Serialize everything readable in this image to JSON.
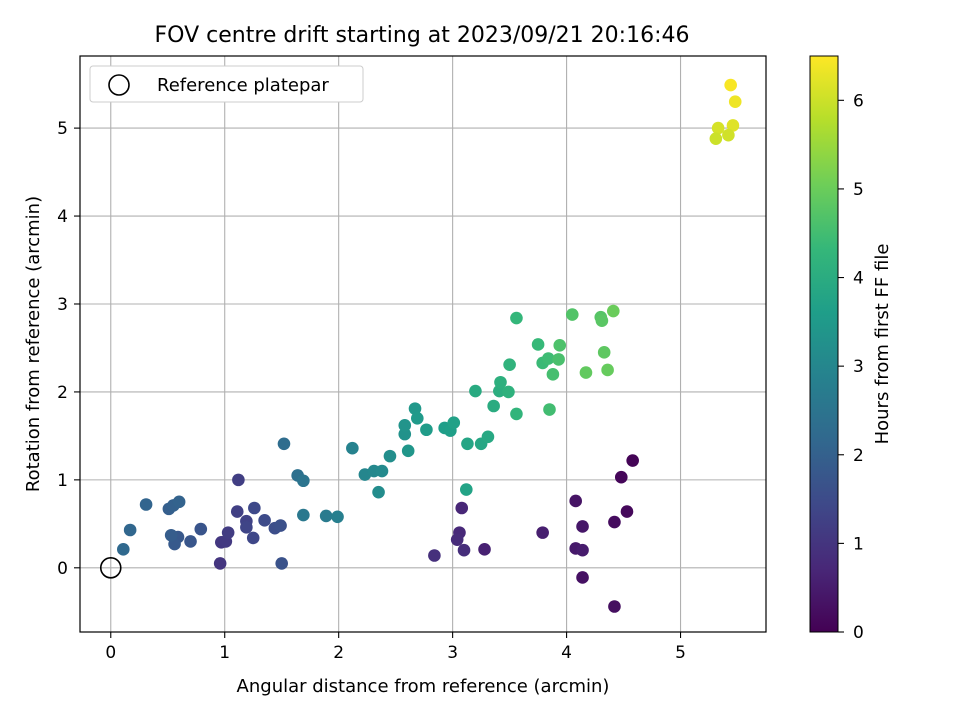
{
  "chart_data": {
    "type": "scatter",
    "title": "FOV centre drift starting at 2023/09/21 20:16:46",
    "xlabel": "Angular distance from reference (arcmin)",
    "ylabel": "Rotation from reference (arcmin)",
    "xlim": [
      -0.27,
      5.75
    ],
    "ylim": [
      -0.73,
      5.82
    ],
    "xticks": [
      0,
      1,
      2,
      3,
      4,
      5
    ],
    "yticks": [
      0,
      1,
      2,
      3,
      4,
      5
    ],
    "grid": true,
    "legend": {
      "placement": "top-left",
      "entries": [
        "Reference platepar"
      ]
    },
    "reference_point": {
      "x": 0.0,
      "y": 0.0,
      "name": "Reference platepar"
    },
    "colorbar": {
      "label": "Hours from first FF file",
      "range": [
        0,
        6.5
      ],
      "ticks": [
        0,
        1,
        2,
        3,
        4,
        5,
        6
      ],
      "colormap": "viridis"
    },
    "points": [
      {
        "x": 4.58,
        "y": 1.22,
        "c": 0.05
      },
      {
        "x": 4.48,
        "y": 1.03,
        "c": 0.1
      },
      {
        "x": 4.53,
        "y": 0.64,
        "c": 0.15
      },
      {
        "x": 4.42,
        "y": 0.52,
        "c": 0.2
      },
      {
        "x": 4.42,
        "y": -0.44,
        "c": 0.25
      },
      {
        "x": 4.14,
        "y": -0.11,
        "c": 0.3
      },
      {
        "x": 4.08,
        "y": 0.76,
        "c": 0.35
      },
      {
        "x": 4.14,
        "y": 0.47,
        "c": 0.4
      },
      {
        "x": 4.08,
        "y": 0.22,
        "c": 0.45
      },
      {
        "x": 4.14,
        "y": 0.2,
        "c": 0.5
      },
      {
        "x": 3.79,
        "y": 0.4,
        "c": 0.55
      },
      {
        "x": 3.28,
        "y": 0.21,
        "c": 0.6
      },
      {
        "x": 3.08,
        "y": 0.68,
        "c": 0.7
      },
      {
        "x": 3.06,
        "y": 0.4,
        "c": 0.75
      },
      {
        "x": 3.04,
        "y": 0.32,
        "c": 0.8
      },
      {
        "x": 3.1,
        "y": 0.2,
        "c": 0.85
      },
      {
        "x": 2.84,
        "y": 0.14,
        "c": 0.9
      },
      {
        "x": 0.96,
        "y": 0.05,
        "c": 1.0
      },
      {
        "x": 0.97,
        "y": 0.29,
        "c": 1.05
      },
      {
        "x": 1.01,
        "y": 0.3,
        "c": 1.1
      },
      {
        "x": 1.03,
        "y": 0.4,
        "c": 1.15
      },
      {
        "x": 1.12,
        "y": 1.0,
        "c": 1.2
      },
      {
        "x": 1.11,
        "y": 0.64,
        "c": 1.25
      },
      {
        "x": 1.19,
        "y": 0.53,
        "c": 1.3
      },
      {
        "x": 1.19,
        "y": 0.46,
        "c": 1.35
      },
      {
        "x": 1.25,
        "y": 0.34,
        "c": 1.4
      },
      {
        "x": 1.26,
        "y": 0.68,
        "c": 1.45
      },
      {
        "x": 1.35,
        "y": 0.54,
        "c": 1.5
      },
      {
        "x": 1.44,
        "y": 0.45,
        "c": 1.55
      },
      {
        "x": 1.49,
        "y": 0.48,
        "c": 1.6
      },
      {
        "x": 1.5,
        "y": 0.05,
        "c": 1.65
      },
      {
        "x": 0.79,
        "y": 0.44,
        "c": 1.7
      },
      {
        "x": 0.7,
        "y": 0.3,
        "c": 1.75
      },
      {
        "x": 0.59,
        "y": 0.35,
        "c": 1.8
      },
      {
        "x": 0.56,
        "y": 0.27,
        "c": 1.85
      },
      {
        "x": 0.53,
        "y": 0.37,
        "c": 1.9
      },
      {
        "x": 0.51,
        "y": 0.67,
        "c": 1.95
      },
      {
        "x": 0.55,
        "y": 0.71,
        "c": 2.0
      },
      {
        "x": 0.6,
        "y": 0.75,
        "c": 2.05
      },
      {
        "x": 0.31,
        "y": 0.72,
        "c": 2.1
      },
      {
        "x": 0.17,
        "y": 0.43,
        "c": 2.15
      },
      {
        "x": 0.11,
        "y": 0.21,
        "c": 2.2
      },
      {
        "x": 1.52,
        "y": 1.41,
        "c": 2.3
      },
      {
        "x": 1.64,
        "y": 1.05,
        "c": 2.4
      },
      {
        "x": 1.69,
        "y": 0.99,
        "c": 2.5
      },
      {
        "x": 1.69,
        "y": 0.6,
        "c": 2.6
      },
      {
        "x": 1.89,
        "y": 0.59,
        "c": 2.7
      },
      {
        "x": 1.99,
        "y": 0.58,
        "c": 2.8
      },
      {
        "x": 2.12,
        "y": 1.36,
        "c": 2.9
      },
      {
        "x": 2.23,
        "y": 1.06,
        "c": 3.0
      },
      {
        "x": 2.31,
        "y": 1.1,
        "c": 3.05
      },
      {
        "x": 2.38,
        "y": 1.1,
        "c": 3.1
      },
      {
        "x": 2.35,
        "y": 0.86,
        "c": 3.15
      },
      {
        "x": 2.45,
        "y": 1.27,
        "c": 3.2
      },
      {
        "x": 2.58,
        "y": 1.52,
        "c": 3.3
      },
      {
        "x": 2.58,
        "y": 1.62,
        "c": 3.35
      },
      {
        "x": 2.61,
        "y": 1.33,
        "c": 3.4
      },
      {
        "x": 2.67,
        "y": 1.81,
        "c": 3.45
      },
      {
        "x": 2.69,
        "y": 1.7,
        "c": 3.5
      },
      {
        "x": 2.77,
        "y": 1.57,
        "c": 3.55
      },
      {
        "x": 2.93,
        "y": 1.59,
        "c": 3.6
      },
      {
        "x": 2.98,
        "y": 1.56,
        "c": 3.65
      },
      {
        "x": 3.01,
        "y": 1.65,
        "c": 3.7
      },
      {
        "x": 3.12,
        "y": 0.89,
        "c": 3.75
      },
      {
        "x": 3.13,
        "y": 1.41,
        "c": 3.8
      },
      {
        "x": 3.25,
        "y": 1.41,
        "c": 3.85
      },
      {
        "x": 3.31,
        "y": 1.49,
        "c": 3.9
      },
      {
        "x": 3.2,
        "y": 2.01,
        "c": 3.95
      },
      {
        "x": 3.36,
        "y": 1.84,
        "c": 4.0
      },
      {
        "x": 3.41,
        "y": 2.01,
        "c": 4.05
      },
      {
        "x": 3.42,
        "y": 2.11,
        "c": 4.1
      },
      {
        "x": 3.49,
        "y": 2.0,
        "c": 4.15
      },
      {
        "x": 3.5,
        "y": 2.31,
        "c": 4.2
      },
      {
        "x": 3.56,
        "y": 1.75,
        "c": 4.25
      },
      {
        "x": 3.56,
        "y": 2.84,
        "c": 4.3
      },
      {
        "x": 3.75,
        "y": 2.54,
        "c": 4.35
      },
      {
        "x": 3.79,
        "y": 2.33,
        "c": 4.4
      },
      {
        "x": 3.84,
        "y": 2.38,
        "c": 4.45
      },
      {
        "x": 3.85,
        "y": 1.8,
        "c": 4.5
      },
      {
        "x": 3.88,
        "y": 2.2,
        "c": 4.55
      },
      {
        "x": 3.93,
        "y": 2.37,
        "c": 4.6
      },
      {
        "x": 3.94,
        "y": 2.53,
        "c": 4.65
      },
      {
        "x": 4.05,
        "y": 2.88,
        "c": 4.7
      },
      {
        "x": 4.17,
        "y": 2.22,
        "c": 4.9
      },
      {
        "x": 4.3,
        "y": 2.85,
        "c": 4.75
      },
      {
        "x": 4.31,
        "y": 2.81,
        "c": 4.8
      },
      {
        "x": 4.33,
        "y": 2.45,
        "c": 4.85
      },
      {
        "x": 4.36,
        "y": 2.25,
        "c": 4.95
      },
      {
        "x": 4.41,
        "y": 2.92,
        "c": 5.0
      },
      {
        "x": 5.44,
        "y": 5.49,
        "c": 6.45
      },
      {
        "x": 5.48,
        "y": 5.3,
        "c": 6.35
      },
      {
        "x": 5.46,
        "y": 5.03,
        "c": 6.2
      },
      {
        "x": 5.33,
        "y": 5.0,
        "c": 6.1
      },
      {
        "x": 5.42,
        "y": 4.92,
        "c": 6.05
      },
      {
        "x": 5.31,
        "y": 4.88,
        "c": 6.0
      }
    ]
  }
}
